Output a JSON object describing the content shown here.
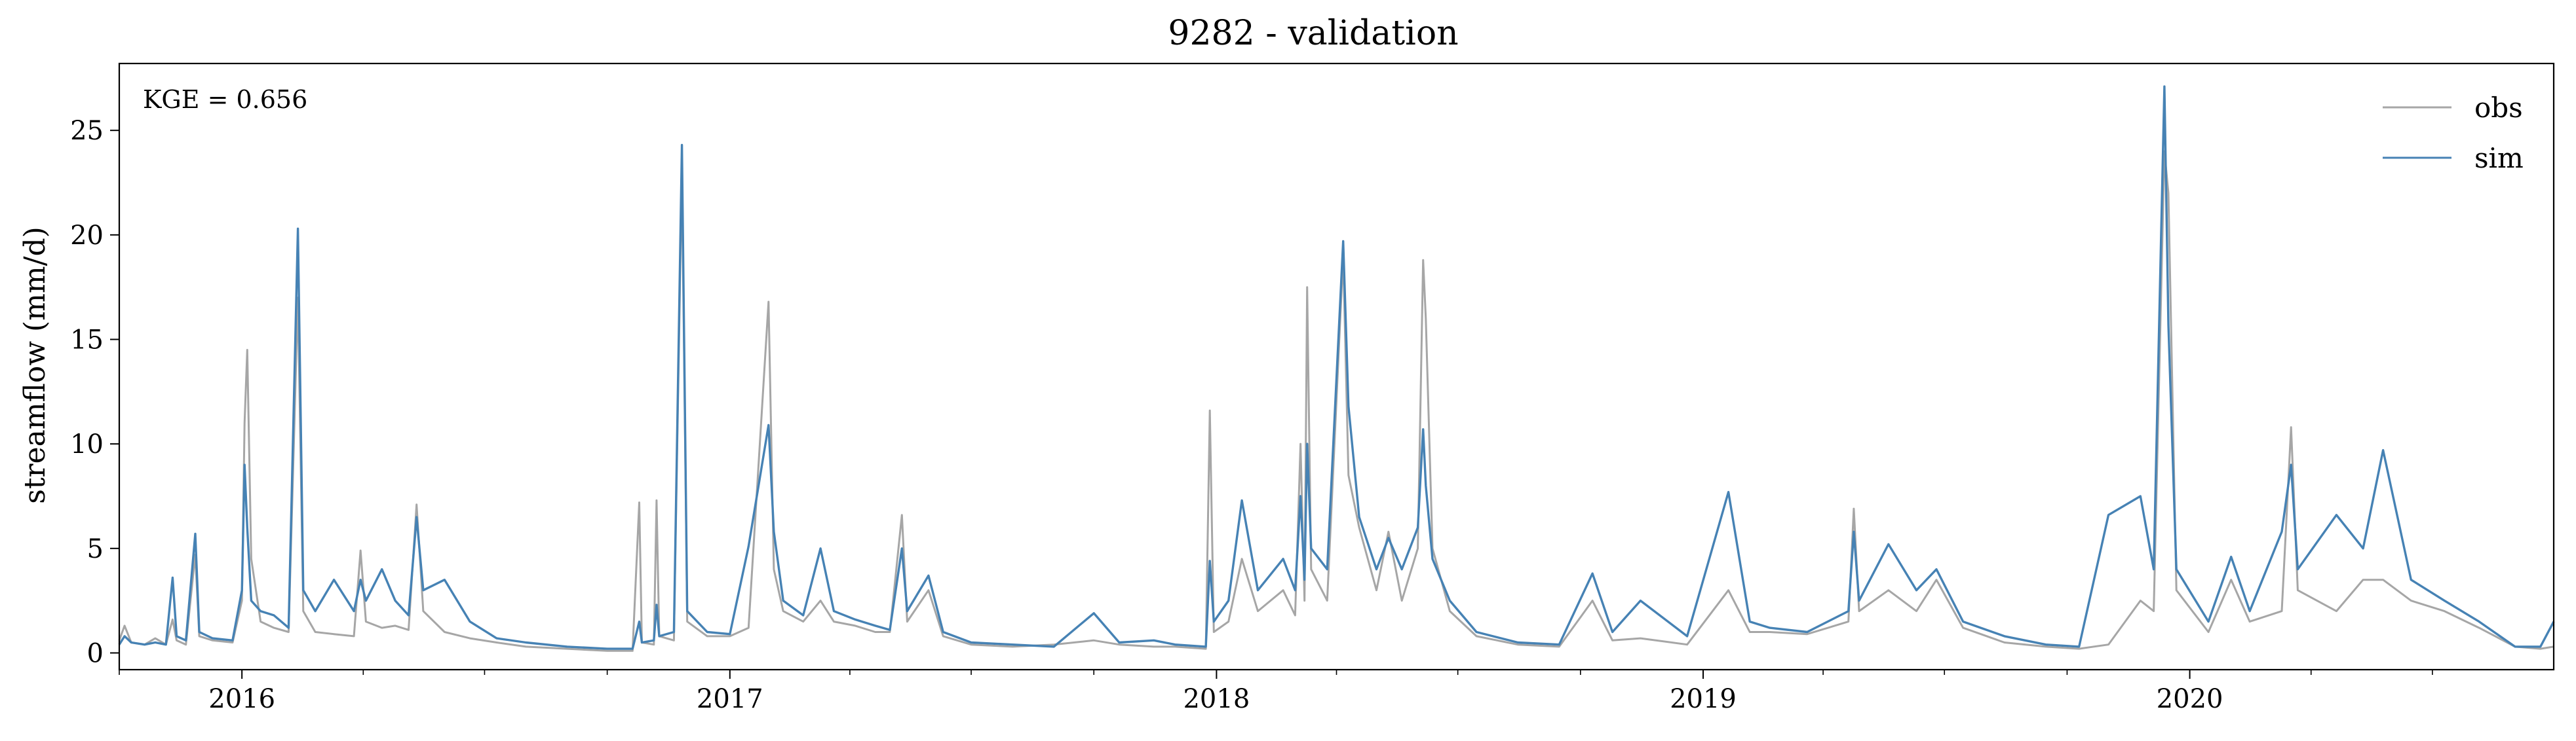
{
  "chart_data": {
    "type": "line",
    "title": "9282 - validation",
    "xlabel": "",
    "ylabel": "streamflow (mm/d)",
    "annotation": "KGE = 0.656",
    "xlim": [
      "2015-10-01",
      "2020-09-30"
    ],
    "ylim": [
      -0.8,
      28.2
    ],
    "yticks": [
      0,
      5,
      10,
      15,
      20,
      25
    ],
    "xticks": [
      "2016",
      "2017",
      "2018",
      "2019",
      "2020"
    ],
    "xtick_dates": [
      "2016-01-01",
      "2017-01-01",
      "2018-01-01",
      "2019-01-01",
      "2020-01-01"
    ],
    "minor_xtick_interval_months": 3,
    "grid": false,
    "legend_position": "top-right",
    "series": [
      {
        "name": "obs",
        "color": "#a6a6a6",
        "points": [
          [
            "2015-10-01",
            0.6
          ],
          [
            "2015-10-05",
            1.3
          ],
          [
            "2015-10-10",
            0.5
          ],
          [
            "2015-10-20",
            0.4
          ],
          [
            "2015-10-28",
            0.7
          ],
          [
            "2015-11-05",
            0.4
          ],
          [
            "2015-11-10",
            1.6
          ],
          [
            "2015-11-13",
            0.6
          ],
          [
            "2015-11-20",
            0.4
          ],
          [
            "2015-11-27",
            4.7
          ],
          [
            "2015-11-30",
            0.8
          ],
          [
            "2015-12-10",
            0.6
          ],
          [
            "2015-12-25",
            0.5
          ],
          [
            "2016-01-01",
            2.5
          ],
          [
            "2016-01-03",
            11.0
          ],
          [
            "2016-01-05",
            14.5
          ],
          [
            "2016-01-08",
            4.5
          ],
          [
            "2016-01-15",
            1.5
          ],
          [
            "2016-01-25",
            1.2
          ],
          [
            "2016-02-05",
            1.0
          ],
          [
            "2016-02-12",
            17.0
          ],
          [
            "2016-02-16",
            2.0
          ],
          [
            "2016-02-25",
            1.0
          ],
          [
            "2016-03-10",
            0.9
          ],
          [
            "2016-03-25",
            0.8
          ],
          [
            "2016-03-30",
            4.9
          ],
          [
            "2016-04-03",
            1.5
          ],
          [
            "2016-04-15",
            1.2
          ],
          [
            "2016-04-25",
            1.3
          ],
          [
            "2016-05-05",
            1.1
          ],
          [
            "2016-05-11",
            7.1
          ],
          [
            "2016-05-16",
            2.0
          ],
          [
            "2016-06-01",
            1.0
          ],
          [
            "2016-06-20",
            0.7
          ],
          [
            "2016-07-10",
            0.5
          ],
          [
            "2016-08-01",
            0.3
          ],
          [
            "2016-09-01",
            0.2
          ],
          [
            "2016-10-01",
            0.1
          ],
          [
            "2016-10-20",
            0.1
          ],
          [
            "2016-10-25",
            7.2
          ],
          [
            "2016-10-27",
            0.5
          ],
          [
            "2016-11-05",
            0.4
          ],
          [
            "2016-11-07",
            7.3
          ],
          [
            "2016-11-09",
            0.8
          ],
          [
            "2016-11-20",
            0.6
          ],
          [
            "2016-11-26",
            23.0
          ],
          [
            "2016-11-30",
            1.5
          ],
          [
            "2016-12-15",
            0.8
          ],
          [
            "2017-01-01",
            0.8
          ],
          [
            "2017-01-15",
            1.2
          ],
          [
            "2017-01-30",
            16.8
          ],
          [
            "2017-02-03",
            4.0
          ],
          [
            "2017-02-10",
            2.0
          ],
          [
            "2017-02-25",
            1.5
          ],
          [
            "2017-03-10",
            2.5
          ],
          [
            "2017-03-20",
            1.5
          ],
          [
            "2017-04-05",
            1.3
          ],
          [
            "2017-04-20",
            1.0
          ],
          [
            "2017-05-01",
            1.0
          ],
          [
            "2017-05-10",
            6.6
          ],
          [
            "2017-05-14",
            1.5
          ],
          [
            "2017-05-30",
            3.0
          ],
          [
            "2017-06-10",
            0.8
          ],
          [
            "2017-07-01",
            0.4
          ],
          [
            "2017-08-01",
            0.3
          ],
          [
            "2017-09-01",
            0.4
          ],
          [
            "2017-10-01",
            0.6
          ],
          [
            "2017-10-20",
            0.4
          ],
          [
            "2017-11-15",
            0.3
          ],
          [
            "2017-12-01",
            0.3
          ],
          [
            "2017-12-24",
            0.2
          ],
          [
            "2017-12-27",
            11.6
          ],
          [
            "2017-12-30",
            1.0
          ],
          [
            "2018-01-10",
            1.5
          ],
          [
            "2018-01-20",
            4.5
          ],
          [
            "2018-02-01",
            2.0
          ],
          [
            "2018-02-20",
            3.0
          ],
          [
            "2018-03-01",
            1.8
          ],
          [
            "2018-03-05",
            10.0
          ],
          [
            "2018-03-08",
            2.5
          ],
          [
            "2018-03-10",
            17.5
          ],
          [
            "2018-03-13",
            4.0
          ],
          [
            "2018-03-25",
            2.5
          ],
          [
            "2018-04-06",
            19.0
          ],
          [
            "2018-04-10",
            8.5
          ],
          [
            "2018-04-18",
            6.0
          ],
          [
            "2018-05-01",
            3.0
          ],
          [
            "2018-05-10",
            5.8
          ],
          [
            "2018-05-20",
            2.5
          ],
          [
            "2018-06-01",
            5.0
          ],
          [
            "2018-06-05",
            18.8
          ],
          [
            "2018-06-07",
            16.0
          ],
          [
            "2018-06-12",
            5.0
          ],
          [
            "2018-06-25",
            2.0
          ],
          [
            "2018-07-15",
            0.8
          ],
          [
            "2018-08-15",
            0.4
          ],
          [
            "2018-09-15",
            0.3
          ],
          [
            "2018-10-10",
            2.5
          ],
          [
            "2018-10-25",
            0.6
          ],
          [
            "2018-11-15",
            0.7
          ],
          [
            "2018-12-20",
            0.4
          ],
          [
            "2019-01-20",
            3.0
          ],
          [
            "2019-02-05",
            1.0
          ],
          [
            "2019-02-20",
            1.0
          ],
          [
            "2019-03-20",
            0.9
          ],
          [
            "2019-04-20",
            1.5
          ],
          [
            "2019-04-24",
            6.9
          ],
          [
            "2019-04-28",
            2.0
          ],
          [
            "2019-05-20",
            3.0
          ],
          [
            "2019-06-10",
            2.0
          ],
          [
            "2019-06-25",
            3.5
          ],
          [
            "2019-07-15",
            1.2
          ],
          [
            "2019-08-15",
            0.5
          ],
          [
            "2019-09-15",
            0.3
          ],
          [
            "2019-10-10",
            0.2
          ],
          [
            "2019-11-01",
            0.4
          ],
          [
            "2019-11-25",
            2.5
          ],
          [
            "2019-12-05",
            2.0
          ],
          [
            "2019-12-13",
            24.0
          ],
          [
            "2019-12-16",
            22.0
          ],
          [
            "2019-12-22",
            3.0
          ],
          [
            "2020-01-15",
            1.0
          ],
          [
            "2020-02-01",
            3.5
          ],
          [
            "2020-02-15",
            1.5
          ],
          [
            "2020-03-10",
            2.0
          ],
          [
            "2020-03-17",
            10.8
          ],
          [
            "2020-03-22",
            3.0
          ],
          [
            "2020-04-20",
            2.0
          ],
          [
            "2020-05-10",
            3.5
          ],
          [
            "2020-05-25",
            3.5
          ],
          [
            "2020-06-15",
            2.5
          ],
          [
            "2020-07-10",
            2.0
          ],
          [
            "2020-08-05",
            1.2
          ],
          [
            "2020-09-01",
            0.3
          ],
          [
            "2020-09-20",
            0.2
          ],
          [
            "2020-09-30",
            0.3
          ]
        ]
      },
      {
        "name": "sim",
        "color": "#4682b4",
        "points": [
          [
            "2015-10-01",
            0.4
          ],
          [
            "2015-10-05",
            0.8
          ],
          [
            "2015-10-10",
            0.5
          ],
          [
            "2015-10-20",
            0.4
          ],
          [
            "2015-10-28",
            0.5
          ],
          [
            "2015-11-05",
            0.4
          ],
          [
            "2015-11-10",
            3.6
          ],
          [
            "2015-11-13",
            0.8
          ],
          [
            "2015-11-20",
            0.6
          ],
          [
            "2015-11-27",
            5.7
          ],
          [
            "2015-11-30",
            1.0
          ],
          [
            "2015-12-10",
            0.7
          ],
          [
            "2015-12-25",
            0.6
          ],
          [
            "2016-01-01",
            3.0
          ],
          [
            "2016-01-03",
            9.0
          ],
          [
            "2016-01-05",
            6.0
          ],
          [
            "2016-01-08",
            2.5
          ],
          [
            "2016-01-15",
            2.0
          ],
          [
            "2016-01-25",
            1.8
          ],
          [
            "2016-02-05",
            1.2
          ],
          [
            "2016-02-12",
            20.3
          ],
          [
            "2016-02-16",
            3.0
          ],
          [
            "2016-02-25",
            2.0
          ],
          [
            "2016-03-10",
            3.5
          ],
          [
            "2016-03-25",
            2.0
          ],
          [
            "2016-03-30",
            3.5
          ],
          [
            "2016-04-03",
            2.5
          ],
          [
            "2016-04-15",
            4.0
          ],
          [
            "2016-04-25",
            2.5
          ],
          [
            "2016-05-05",
            1.8
          ],
          [
            "2016-05-11",
            6.5
          ],
          [
            "2016-05-16",
            3.0
          ],
          [
            "2016-06-01",
            3.5
          ],
          [
            "2016-06-20",
            1.5
          ],
          [
            "2016-07-10",
            0.7
          ],
          [
            "2016-08-01",
            0.5
          ],
          [
            "2016-09-01",
            0.3
          ],
          [
            "2016-10-01",
            0.2
          ],
          [
            "2016-10-20",
            0.2
          ],
          [
            "2016-10-25",
            1.5
          ],
          [
            "2016-10-27",
            0.5
          ],
          [
            "2016-11-05",
            0.6
          ],
          [
            "2016-11-07",
            2.3
          ],
          [
            "2016-11-09",
            0.8
          ],
          [
            "2016-11-20",
            1.0
          ],
          [
            "2016-11-26",
            24.3
          ],
          [
            "2016-11-30",
            2.0
          ],
          [
            "2016-12-15",
            1.0
          ],
          [
            "2017-01-01",
            0.9
          ],
          [
            "2017-01-15",
            5.1
          ],
          [
            "2017-01-30",
            10.9
          ],
          [
            "2017-02-03",
            5.8
          ],
          [
            "2017-02-10",
            2.5
          ],
          [
            "2017-02-25",
            1.8
          ],
          [
            "2017-03-10",
            5.0
          ],
          [
            "2017-03-20",
            2.0
          ],
          [
            "2017-04-05",
            1.6
          ],
          [
            "2017-04-20",
            1.3
          ],
          [
            "2017-05-01",
            1.1
          ],
          [
            "2017-05-10",
            5.0
          ],
          [
            "2017-05-14",
            2.0
          ],
          [
            "2017-05-30",
            3.7
          ],
          [
            "2017-06-10",
            1.0
          ],
          [
            "2017-07-01",
            0.5
          ],
          [
            "2017-08-01",
            0.4
          ],
          [
            "2017-09-01",
            0.3
          ],
          [
            "2017-10-01",
            1.9
          ],
          [
            "2017-10-20",
            0.5
          ],
          [
            "2017-11-15",
            0.6
          ],
          [
            "2017-12-01",
            0.4
          ],
          [
            "2017-12-24",
            0.3
          ],
          [
            "2017-12-27",
            4.4
          ],
          [
            "2017-12-30",
            1.5
          ],
          [
            "2018-01-10",
            2.5
          ],
          [
            "2018-01-20",
            7.3
          ],
          [
            "2018-02-01",
            3.0
          ],
          [
            "2018-02-20",
            4.5
          ],
          [
            "2018-03-01",
            3.0
          ],
          [
            "2018-03-05",
            7.5
          ],
          [
            "2018-03-08",
            3.5
          ],
          [
            "2018-03-10",
            10.0
          ],
          [
            "2018-03-13",
            5.0
          ],
          [
            "2018-03-25",
            4.0
          ],
          [
            "2018-04-06",
            19.7
          ],
          [
            "2018-04-10",
            11.8
          ],
          [
            "2018-04-18",
            6.5
          ],
          [
            "2018-05-01",
            4.0
          ],
          [
            "2018-05-10",
            5.5
          ],
          [
            "2018-05-20",
            4.0
          ],
          [
            "2018-06-01",
            6.0
          ],
          [
            "2018-06-05",
            10.7
          ],
          [
            "2018-06-07",
            8.0
          ],
          [
            "2018-06-12",
            4.5
          ],
          [
            "2018-06-25",
            2.5
          ],
          [
            "2018-07-15",
            1.0
          ],
          [
            "2018-08-15",
            0.5
          ],
          [
            "2018-09-15",
            0.4
          ],
          [
            "2018-10-10",
            3.8
          ],
          [
            "2018-10-25",
            1.0
          ],
          [
            "2018-11-15",
            2.5
          ],
          [
            "2018-12-20",
            0.8
          ],
          [
            "2019-01-20",
            7.7
          ],
          [
            "2019-02-05",
            1.5
          ],
          [
            "2019-02-20",
            1.2
          ],
          [
            "2019-03-20",
            1.0
          ],
          [
            "2019-04-20",
            2.0
          ],
          [
            "2019-04-24",
            5.8
          ],
          [
            "2019-04-28",
            2.5
          ],
          [
            "2019-05-20",
            5.2
          ],
          [
            "2019-06-10",
            3.0
          ],
          [
            "2019-06-25",
            4.0
          ],
          [
            "2019-07-15",
            1.5
          ],
          [
            "2019-08-15",
            0.8
          ],
          [
            "2019-09-15",
            0.4
          ],
          [
            "2019-10-10",
            0.3
          ],
          [
            "2019-11-01",
            6.6
          ],
          [
            "2019-11-25",
            7.5
          ],
          [
            "2019-12-05",
            4.0
          ],
          [
            "2019-12-13",
            27.1
          ],
          [
            "2019-12-16",
            15.7
          ],
          [
            "2019-12-22",
            4.0
          ],
          [
            "2020-01-15",
            1.5
          ],
          [
            "2020-02-01",
            4.6
          ],
          [
            "2020-02-15",
            2.0
          ],
          [
            "2020-03-10",
            5.8
          ],
          [
            "2020-03-17",
            9.0
          ],
          [
            "2020-03-22",
            4.0
          ],
          [
            "2020-04-20",
            6.6
          ],
          [
            "2020-05-10",
            5.0
          ],
          [
            "2020-05-25",
            9.7
          ],
          [
            "2020-06-15",
            3.5
          ],
          [
            "2020-07-10",
            2.5
          ],
          [
            "2020-08-05",
            1.5
          ],
          [
            "2020-09-01",
            0.3
          ],
          [
            "2020-09-20",
            0.3
          ],
          [
            "2020-09-30",
            1.5
          ]
        ]
      }
    ]
  }
}
